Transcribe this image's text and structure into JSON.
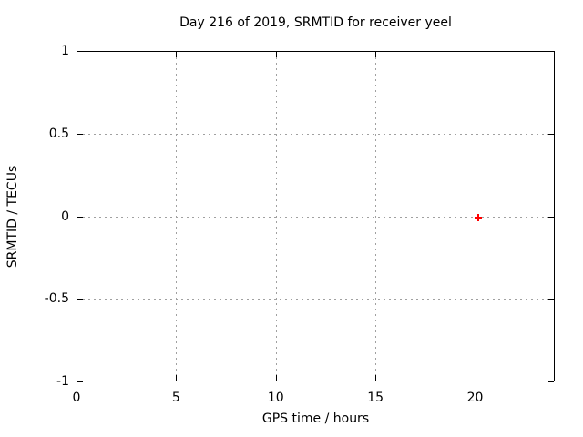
{
  "chart_data": {
    "type": "scatter",
    "title": "Day 216 of 2019, SRMTID for receiver yeel",
    "xlabel": "GPS time / hours",
    "ylabel": "SRMTID / TECUs",
    "xlim": [
      0,
      24
    ],
    "ylim": [
      -1,
      1
    ],
    "xticks": [
      0,
      5,
      10,
      15,
      20
    ],
    "yticks": [
      -1,
      -0.5,
      0,
      0.5,
      1
    ],
    "grid": true,
    "legend_position": "none",
    "series": [
      {
        "name": "SRMTID",
        "marker": "plus",
        "color": "#ff0000",
        "points": [
          {
            "x": 20.15,
            "y": -0.01
          }
        ]
      }
    ],
    "colors": {
      "background": "#ffffff",
      "border": "#000000",
      "grid": "#a0a0a0",
      "text": "#000000"
    }
  }
}
